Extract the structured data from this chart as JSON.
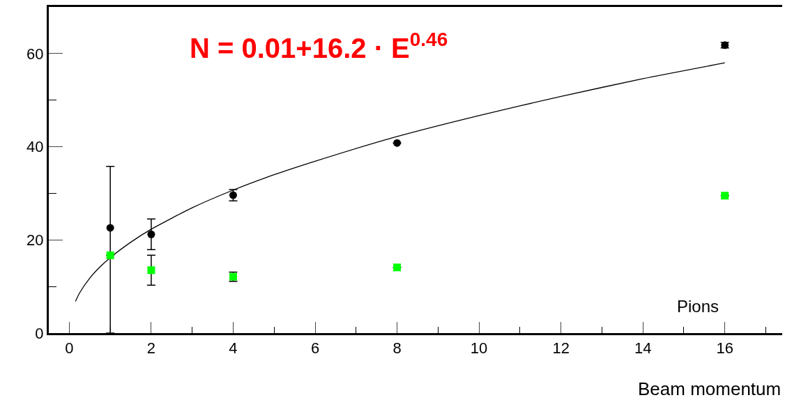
{
  "chart_data": {
    "type": "scatter",
    "xlabel": "Beam momentum",
    "annotations": [
      "N = 0.01+16.2 · E$^{0.46}$",
      "Pions"
    ],
    "xlim": [
      -0.5,
      17.4
    ],
    "xticks": [
      0,
      {
        "value": 1,
        "label": null
      },
      2,
      {
        "value": 3,
        "label": null
      },
      4,
      {
        "value": 5,
        "label": null
      },
      6,
      {
        "value": 7,
        "label": null
      },
      8,
      {
        "value": 9,
        "label": null
      },
      10,
      {
        "value": 11,
        "label": null
      },
      12,
      {
        "value": 13,
        "label": null
      },
      14,
      {
        "value": 15,
        "label": null
      },
      16,
      {
        "value": 17,
        "label": null
      }
    ],
    "ylim": [
      0,
      70
    ],
    "yticks": [
      0,
      {
        "value": 10,
        "label": null
      },
      20,
      {
        "value": 30,
        "label": null
      },
      40,
      {
        "value": 50,
        "label": null
      },
      60
    ],
    "series": [
      {
        "type": "line",
        "color": "#000000",
        "marker": "none",
        "line_style": "solid",
        "x": [
          0.15,
          0.25,
          0.5,
          0.75,
          1,
          1.5,
          2,
          3,
          4,
          5,
          6,
          8,
          10,
          12,
          14,
          16
        ],
        "values": [
          6.8,
          8.6,
          11.8,
          14.2,
          16.2,
          19.5,
          22.3,
          26.9,
          30.7,
          34.0,
          36.9,
          42.2,
          46.7,
          50.8,
          54.6,
          58.0
        ]
      },
      {
        "color": "#000000",
        "marker": "circle",
        "x": [
          1,
          2,
          4,
          8,
          16
        ],
        "values": [
          22.6,
          21.2,
          29.6,
          40.8,
          61.8
        ],
        "errors": [
          [
            0,
            35.8
          ],
          3.3,
          1.2,
          null,
          0.6
        ]
      },
      {
        "color": "#00ff00",
        "marker": "square",
        "x": [
          1,
          2,
          4,
          8,
          16
        ],
        "values": [
          16.7,
          13.5,
          12.1,
          14.1,
          29.5
        ],
        "errors": [
          null,
          3.2,
          1.0,
          null,
          null
        ]
      }
    ]
  }
}
